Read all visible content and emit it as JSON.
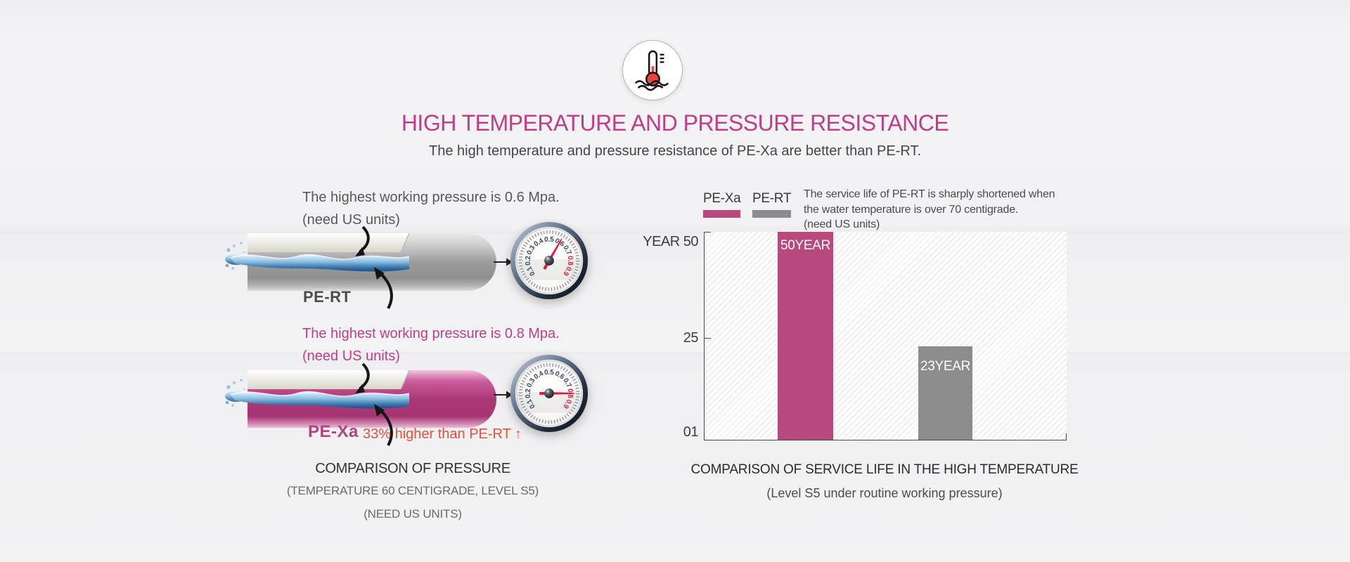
{
  "header": {
    "icon": "thermometer-water-icon",
    "title": "HIGH TEMPERATURE AND PRESSURE RESISTANCE",
    "subtitle": "The high temperature and pressure resistance of PE-Xa are better than PE-RT."
  },
  "colors": {
    "accent_magenta": "#c13d87",
    "pexa_label_magenta": "#b5437f",
    "note_red": "#e8503c",
    "needle_red": "#e2173d",
    "bar_pexa": "#b8497f",
    "bar_pert": "#8c8c8c",
    "icon_bulb_red": "#e8453c"
  },
  "pressure_section": {
    "rows": [
      {
        "pressure_line": "The highest working pressure is 0.6 Mpa.",
        "units_line": "(need US units)",
        "pipe_label": "PE-RT",
        "gauge_value": 0.6
      },
      {
        "pressure_line": "The highest working pressure is 0.8 Mpa.",
        "units_line": "(need US units)",
        "pipe_label": "PE-Xa",
        "note": "33% higher than PE-RT ↑",
        "gauge_value": 0.8
      }
    ],
    "gauge_dial": [
      "0.1",
      "0.2",
      "0.3",
      "0.4",
      "0.5",
      "0.6",
      "0.7",
      "0.8",
      "0.9"
    ],
    "caption": "COMPARISON OF PRESSURE",
    "subcaption_1": "(TEMPERATURE 60 CENTIGRADE, LEVEL S5)",
    "subcaption_2": "(NEED US UNITS)"
  },
  "service_life_section": {
    "legend": [
      {
        "label": "PE-Xa"
      },
      {
        "label": "PE-RT"
      }
    ],
    "description_lines": [
      "The service life of PE-RT is sharply shortened when",
      "the water temperature is over 70 centigrade.",
      "(need US units)"
    ],
    "y_axis_labels": {
      "top": "YEAR 50",
      "mid": "25",
      "bottom": "01"
    },
    "caption": "COMPARISON OF SERVICE LIFE IN THE HIGH TEMPERATURE",
    "subcaption": "(Level S5 under routine working pressure)"
  },
  "chart_data": {
    "type": "bar",
    "categories": [
      "PE-Xa",
      "PE-RT"
    ],
    "values": [
      50,
      23
    ],
    "bar_labels": [
      "50YEAR",
      "23YEAR"
    ],
    "bar_colors": [
      "#b8497f",
      "#8c8c8c"
    ],
    "title": "COMPARISON OF SERVICE LIFE IN THE HIGH TEMPERATURE",
    "subtitle": "(Level S5 under routine working pressure)",
    "ylabel": "YEAR",
    "ylim": [
      1,
      50
    ],
    "yticks": [
      1,
      25,
      50
    ],
    "ytick_labels": [
      "01",
      "25",
      "YEAR 50"
    ],
    "legend_position": "top-left",
    "grid": "diagonal-hatch-background",
    "annotation": "The service life of PE-RT is sharply shortened when the water temperature is over 70 centigrade. (need US units)"
  }
}
